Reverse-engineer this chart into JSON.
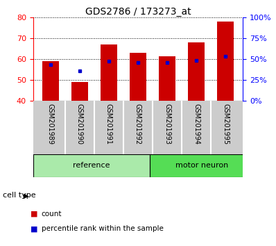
{
  "title": "GDS2786 / 173273_at",
  "samples": [
    "GSM201989",
    "GSM201990",
    "GSM201991",
    "GSM201992",
    "GSM201993",
    "GSM201994",
    "GSM201995"
  ],
  "count_values": [
    59.0,
    49.0,
    67.0,
    63.0,
    61.5,
    68.0,
    78.0
  ],
  "percentile_values": [
    57.5,
    54.5,
    59.0,
    58.5,
    58.5,
    59.5,
    61.5
  ],
  "y_min": 40,
  "y_max": 80,
  "y_ticks_left": [
    40,
    50,
    60,
    70,
    80
  ],
  "y_ticks_right": [
    0,
    25,
    50,
    75,
    100
  ],
  "y_right_labels": [
    "0%",
    "25%",
    "50%",
    "75%",
    "100%"
  ],
  "bar_color": "#cc0000",
  "dot_color": "#0000cc",
  "n_reference": 4,
  "n_motor_neuron": 3,
  "reference_label": "reference",
  "motor_neuron_label": "motor neuron",
  "reference_color": "#aaeaaa",
  "motor_neuron_color": "#55dd55",
  "label_box_color": "#cccccc",
  "cell_type_label": "cell type",
  "legend_count": "count",
  "legend_percentile": "percentile rank within the sample",
  "bar_bottom": 40,
  "bar_width": 0.55
}
